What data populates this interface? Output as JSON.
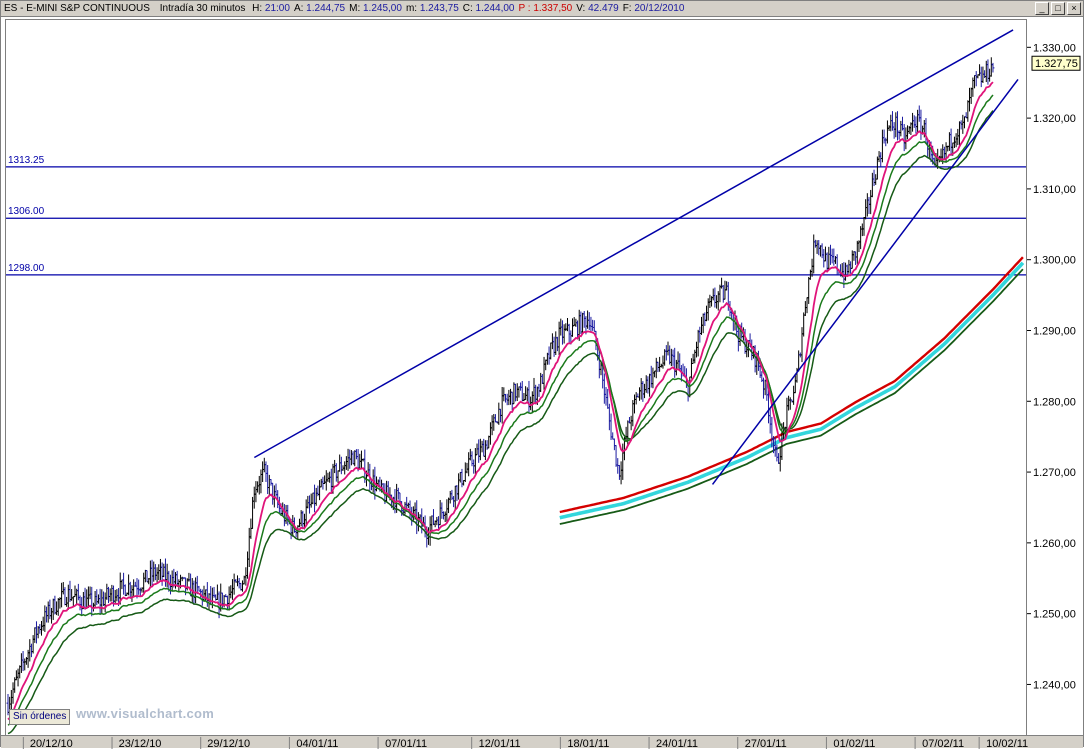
{
  "title_bar": {
    "symbol": "ES - E-MINI S&P CONTINUOUS",
    "interval": "Intradía 30 minutos",
    "fields": [
      {
        "label": "H:",
        "value": "21:00",
        "style": "num"
      },
      {
        "label": "A:",
        "value": "1.244,75",
        "style": "num"
      },
      {
        "label": "M:",
        "value": "1.245,00",
        "style": "num"
      },
      {
        "label": "m:",
        "value": "1.243,75",
        "style": "num"
      },
      {
        "label": "C:",
        "value": "1.244,00",
        "style": "num"
      },
      {
        "label": "P :",
        "value": "1.337,50",
        "style": "red"
      },
      {
        "label": "V:",
        "value": "42.479",
        "style": "num"
      },
      {
        "label": "F:",
        "value": "20/12/2010",
        "style": "num"
      }
    ]
  },
  "footer": {
    "button_label": "Sin órdenes",
    "watermark": "www.visualchart.com"
  },
  "colors": {
    "price_up": "#000000",
    "price_down": "#1b1ba0",
    "ma_fast": "#e0147a",
    "ma_mid": "#1b7a1b",
    "ma_slow_red": "#d40000",
    "ma_slow_cyan": "#33d6dc",
    "ma_slow_green": "#165a16",
    "trendline": "#0000a8",
    "hline": "#0000a8"
  },
  "chart_data": {
    "type": "line",
    "title": "",
    "y_range": [
      1233,
      1334
    ],
    "y_ticks": [
      {
        "value": 1330,
        "label": "1.330,00"
      },
      {
        "value": 1320,
        "label": "1.320,00"
      },
      {
        "value": 1310,
        "label": "1.310,00"
      },
      {
        "value": 1300,
        "label": "1.300,00"
      },
      {
        "value": 1290,
        "label": "1.290,00"
      },
      {
        "value": 1280,
        "label": "1.280,00"
      },
      {
        "value": 1270,
        "label": "1.270,00"
      },
      {
        "value": 1260,
        "label": "1.260,00"
      },
      {
        "value": 1250,
        "label": "1.250,00"
      },
      {
        "value": 1240,
        "label": "1.240,00"
      }
    ],
    "last_price": {
      "value": 1327.75,
      "label": "1.327,75"
    },
    "date_labels": [
      "20/12/10",
      "23/12/10",
      "29/12/10",
      "04/01/11",
      "07/01/11",
      "12/01/11",
      "18/01/11",
      "24/01/11",
      "27/01/11",
      "01/02/11",
      "07/02/11",
      "10/02/11"
    ],
    "x_range": [
      0,
      205
    ],
    "date_label_positions": [
      9,
      27,
      45,
      63,
      81,
      100,
      118,
      136,
      154,
      172,
      190,
      203
    ],
    "horizontal_lines": [
      {
        "value": 1313.25,
        "label": "1313.25"
      },
      {
        "value": 1306.0,
        "label": "1306.00"
      },
      {
        "value": 1298.0,
        "label": "1298.00"
      }
    ],
    "trendlines": [
      {
        "name": "upper",
        "points": [
          [
            50,
            1272.2
          ],
          [
            204,
            1332.6
          ]
        ]
      },
      {
        "name": "lower",
        "points": [
          [
            143,
            1268.4
          ],
          [
            205,
            1325.6
          ]
        ]
      }
    ],
    "price_series": {
      "name": "",
      "x": [
        0,
        3,
        6,
        9,
        12,
        15,
        18,
        21,
        24,
        27,
        30,
        33,
        36,
        39,
        42,
        45,
        48,
        50,
        52,
        55,
        58,
        61,
        64,
        67,
        70,
        73,
        76,
        79,
        82,
        85,
        88,
        91,
        94,
        97,
        100,
        103,
        106,
        108,
        110,
        112,
        114,
        116,
        118,
        120,
        122,
        124,
        126,
        128,
        130,
        132,
        134,
        136,
        138,
        140,
        142,
        144,
        146,
        148,
        150,
        152,
        154,
        156,
        158,
        160,
        162,
        164,
        166,
        168,
        170,
        172,
        174,
        176,
        178,
        180,
        182,
        184,
        186,
        188,
        190,
        192,
        194,
        196,
        198,
        200
      ],
      "values": [
        1237.5,
        1243,
        1248,
        1251,
        1253,
        1252,
        1251.5,
        1253,
        1254,
        1254.5,
        1256,
        1255,
        1254,
        1253,
        1251.5,
        1253,
        1255,
        1268,
        1270,
        1265,
        1262,
        1265,
        1268,
        1270.5,
        1272.5,
        1270,
        1267,
        1266.5,
        1264,
        1262,
        1264.5,
        1268,
        1271.5,
        1274,
        1279.5,
        1281.5,
        1280.5,
        1282.5,
        1287,
        1289.5,
        1290,
        1291,
        1292,
        1286,
        1277.5,
        1270,
        1277,
        1281.5,
        1283,
        1285,
        1286.5,
        1285,
        1282,
        1289,
        1293,
        1295,
        1295.5,
        1290,
        1288,
        1286,
        1281,
        1271,
        1278,
        1283,
        1295,
        1303.5,
        1300,
        1299.5,
        1298,
        1301,
        1306,
        1312.5,
        1318,
        1319.5,
        1317,
        1320,
        1318.5,
        1312.5,
        1315,
        1318,
        1319,
        1325,
        1326,
        1327.75
      ]
    },
    "ma_fast_offset": -1.0,
    "ma_mid_offset": -1.8,
    "ma_mid2_offset": -3.0,
    "slow_ma": {
      "x": [
        112,
        125,
        138,
        150,
        158,
        165,
        172,
        180,
        190,
        200,
        206
      ],
      "values": [
        1264.5,
        1266.5,
        1269.5,
        1273.0,
        1275.8,
        1277.0,
        1280.0,
        1283.0,
        1289.0,
        1296.0,
        1300.5
      ]
    }
  }
}
